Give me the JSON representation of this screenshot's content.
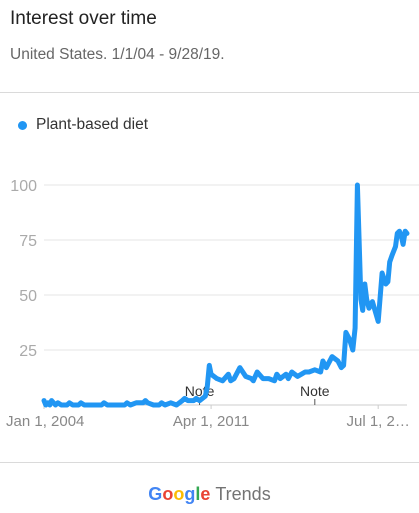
{
  "header": {
    "title": "Interest over time",
    "subtitle": "United States. 1/1/04 - 9/28/19."
  },
  "legend": {
    "items": [
      {
        "label": "Plant-based diet",
        "color": "#2196f3"
      }
    ]
  },
  "footer": {
    "logo_letters": [
      "G",
      "o",
      "o",
      "g",
      "l",
      "e"
    ],
    "logo_colors": [
      "#4285f4",
      "#ea4335",
      "#fbbc05",
      "#4285f4",
      "#34a853",
      "#ea4335"
    ],
    "product": "Trends"
  },
  "chart_data": {
    "type": "line",
    "title": "Interest over time",
    "subtitle": "United States. 1/1/04 - 9/28/19.",
    "xlabel": "",
    "ylabel": "",
    "ylim": [
      0,
      100
    ],
    "yticks": [
      25,
      50,
      75,
      100
    ],
    "ytick_labels": [
      "25",
      "50",
      "75",
      "100"
    ],
    "xlim": [
      2004.0,
      2019.75
    ],
    "xticks": [
      2004.0,
      2011.25,
      2018.5
    ],
    "xtick_labels": [
      "Jan 1, 2004",
      "Apr 1, 2011",
      "Jul 1, 2…"
    ],
    "grid": true,
    "legend_position": "top-left",
    "annotations": [
      {
        "text": "Note",
        "x": 2010.75
      },
      {
        "text": "Note",
        "x": 2015.75
      }
    ],
    "series": [
      {
        "name": "Plant-based diet",
        "color": "#2196f3",
        "x": [
          2004.0,
          2004.08,
          2004.17,
          2004.25,
          2004.33,
          2004.5,
          2004.6,
          2004.75,
          2005.0,
          2005.1,
          2005.25,
          2005.5,
          2005.6,
          2005.75,
          2006.0,
          2006.5,
          2006.6,
          2006.75,
          2007.0,
          2007.5,
          2007.6,
          2007.75,
          2008.0,
          2008.3,
          2008.4,
          2008.5,
          2008.75,
          2009.0,
          2009.1,
          2009.25,
          2009.5,
          2009.75,
          2010.0,
          2010.1,
          2010.25,
          2010.5,
          2010.6,
          2010.75,
          2011.0,
          2011.08,
          2011.17,
          2011.25,
          2011.5,
          2011.75,
          2012.0,
          2012.1,
          2012.25,
          2012.5,
          2012.75,
          2013.0,
          2013.08,
          2013.25,
          2013.5,
          2013.75,
          2014.0,
          2014.1,
          2014.25,
          2014.5,
          2014.6,
          2014.75,
          2015.0,
          2015.17,
          2015.33,
          2015.5,
          2015.75,
          2016.0,
          2016.1,
          2016.25,
          2016.5,
          2016.75,
          2016.9,
          2017.0,
          2017.1,
          2017.25,
          2017.4,
          2017.5,
          2017.6,
          2017.67,
          2017.75,
          2017.83,
          2017.92,
          2018.0,
          2018.1,
          2018.25,
          2018.5,
          2018.67,
          2018.83,
          2018.92,
          2019.0,
          2019.1,
          2019.25,
          2019.33,
          2019.42,
          2019.5,
          2019.58,
          2019.67,
          2019.75
        ],
        "values": [
          2,
          0,
          1,
          0,
          2,
          0,
          1,
          0,
          0,
          1,
          0,
          0,
          1,
          0,
          0,
          0,
          1,
          0,
          0,
          0,
          1,
          0,
          1,
          1,
          2,
          1,
          0,
          0,
          1,
          0,
          1,
          0,
          2,
          3,
          2,
          2,
          3,
          2,
          4,
          8,
          18,
          14,
          12,
          11,
          14,
          11,
          12,
          17,
          13,
          12,
          11,
          15,
          12,
          12,
          11,
          14,
          12,
          14,
          12,
          15,
          13,
          14,
          15,
          15,
          16,
          15,
          20,
          17,
          22,
          20,
          17,
          18,
          33,
          30,
          25,
          35,
          100,
          75,
          48,
          43,
          55,
          48,
          44,
          47,
          38,
          60,
          55,
          56,
          65,
          68,
          72,
          78,
          79,
          77,
          73,
          79,
          78
        ]
      }
    ]
  }
}
